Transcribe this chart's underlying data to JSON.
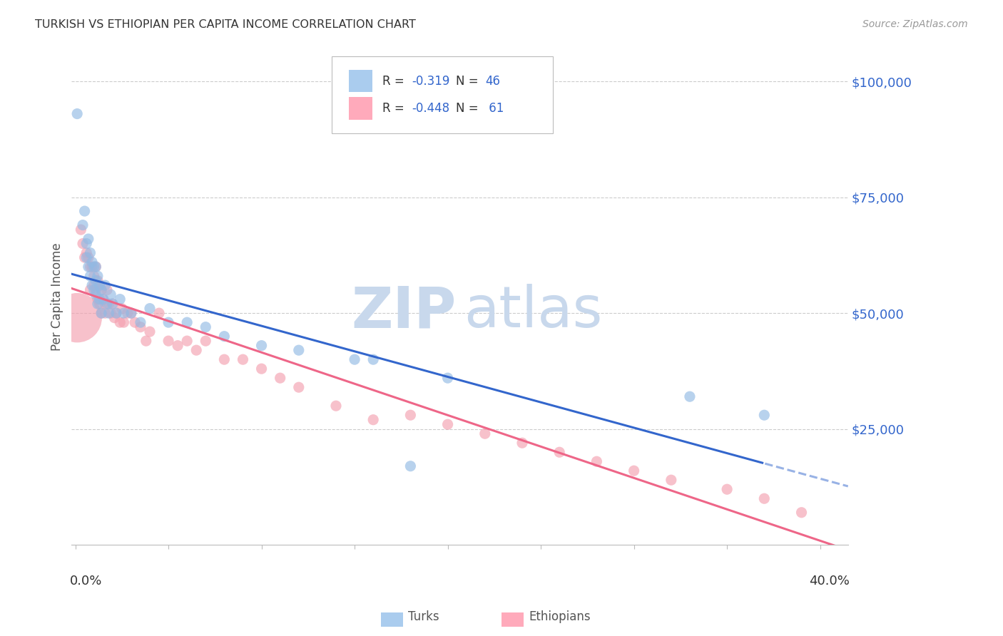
{
  "title": "TURKISH VS ETHIOPIAN PER CAPITA INCOME CORRELATION CHART",
  "source": "Source: ZipAtlas.com",
  "ylabel": "Per Capita Income",
  "ytick_labels": [
    "$100,000",
    "$75,000",
    "$50,000",
    "$25,000"
  ],
  "ytick_values": [
    100000,
    75000,
    50000,
    25000
  ],
  "ymin": 0,
  "ymax": 107000,
  "xmin": -0.002,
  "xmax": 0.415,
  "legend_turks_r": "R = ",
  "legend_turks_rv": "-0.319",
  "legend_turks_n": "N = ",
  "legend_turks_nv": "46",
  "legend_eth_r": "R = ",
  "legend_eth_rv": "-0.448",
  "legend_eth_n": "N = ",
  "legend_eth_nv": " 61",
  "turks_color": "#92BAE4",
  "ethiopians_color": "#F4A0B0",
  "trendline_turks_color": "#3366CC",
  "trendline_ethiopians_color": "#EE6688",
  "legend_turks_fill": "#AACCEE",
  "legend_eth_fill": "#FFAABB",
  "watermark_zip": "ZIP",
  "watermark_atlas": "atlas",
  "watermark_color": "#C8D8EC",
  "background_color": "#FFFFFF",
  "grid_color": "#CCCCCC",
  "turks_x": [
    0.001,
    0.004,
    0.005,
    0.006,
    0.006,
    0.007,
    0.007,
    0.008,
    0.008,
    0.009,
    0.009,
    0.01,
    0.01,
    0.011,
    0.011,
    0.011,
    0.012,
    0.012,
    0.013,
    0.013,
    0.014,
    0.014,
    0.015,
    0.016,
    0.017,
    0.018,
    0.019,
    0.02,
    0.022,
    0.024,
    0.026,
    0.03,
    0.035,
    0.04,
    0.05,
    0.06,
    0.07,
    0.08,
    0.1,
    0.12,
    0.15,
    0.16,
    0.18,
    0.2,
    0.33,
    0.37
  ],
  "turks_y": [
    93000,
    69000,
    72000,
    65000,
    62000,
    66000,
    60000,
    63000,
    58000,
    61000,
    56000,
    60000,
    55000,
    60000,
    57000,
    54000,
    58000,
    52000,
    56000,
    53000,
    55000,
    50000,
    53000,
    56000,
    52000,
    50000,
    54000,
    52000,
    50000,
    53000,
    50000,
    50000,
    48000,
    51000,
    48000,
    48000,
    47000,
    45000,
    43000,
    42000,
    40000,
    40000,
    17000,
    36000,
    32000,
    28000
  ],
  "ethiopians_x": [
    0.001,
    0.003,
    0.004,
    0.005,
    0.006,
    0.007,
    0.008,
    0.008,
    0.009,
    0.01,
    0.01,
    0.011,
    0.011,
    0.012,
    0.012,
    0.013,
    0.013,
    0.014,
    0.014,
    0.015,
    0.016,
    0.016,
    0.017,
    0.018,
    0.019,
    0.02,
    0.021,
    0.022,
    0.024,
    0.025,
    0.026,
    0.028,
    0.03,
    0.032,
    0.035,
    0.038,
    0.04,
    0.045,
    0.05,
    0.055,
    0.06,
    0.065,
    0.07,
    0.08,
    0.09,
    0.1,
    0.11,
    0.12,
    0.14,
    0.16,
    0.18,
    0.2,
    0.22,
    0.24,
    0.26,
    0.28,
    0.3,
    0.32,
    0.35,
    0.37,
    0.39
  ],
  "ethiopians_y": [
    49000,
    68000,
    65000,
    62000,
    63000,
    62000,
    60000,
    55000,
    60000,
    58000,
    56000,
    60000,
    55000,
    57000,
    53000,
    56000,
    52000,
    55000,
    50000,
    53000,
    52000,
    50000,
    55000,
    52000,
    50000,
    52000,
    49000,
    50000,
    48000,
    51000,
    48000,
    50000,
    50000,
    48000,
    47000,
    44000,
    46000,
    50000,
    44000,
    43000,
    44000,
    42000,
    44000,
    40000,
    40000,
    38000,
    36000,
    34000,
    30000,
    27000,
    28000,
    26000,
    24000,
    22000,
    20000,
    18000,
    16000,
    14000,
    12000,
    10000,
    7000
  ],
  "turks_sizes_base": 120,
  "ethiopians_sizes_base": 120,
  "ethiopians_first_size": 2500
}
